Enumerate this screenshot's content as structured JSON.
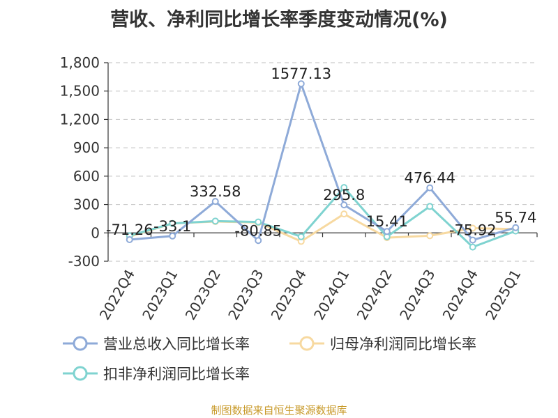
{
  "title": "营收、净利同比增长率季度变动情况(%)",
  "source": "制图数据来自恒生聚源数据库",
  "chart_data": {
    "type": "line",
    "categories": [
      "2022Q4",
      "2023Q1",
      "2023Q2",
      "2023Q3",
      "2023Q4",
      "2024Q1",
      "2024Q2",
      "2024Q3",
      "2024Q4",
      "2025Q1"
    ],
    "ylim": [
      -300,
      1800
    ],
    "yticks": [
      -300,
      0,
      300,
      600,
      900,
      1200,
      1500,
      1800
    ],
    "ytick_labels": [
      "-300",
      "0",
      "300",
      "600",
      "900",
      "1,200",
      "1,500",
      "1,800"
    ],
    "grid": true,
    "legend_position": "bottom",
    "series": [
      {
        "name": "营业总收入同比增长率",
        "color": "#8eaad8",
        "values": [
          -71.26,
          -33.1,
          332.58,
          -80.85,
          1577.13,
          295.8,
          15.41,
          476.44,
          -75.92,
          55.74
        ],
        "labels": [
          "-71.26",
          "-33.1",
          "332.58",
          "-80.85",
          "1577.13",
          "295.8",
          "15.41",
          "476.44",
          "-75.92",
          "55.74"
        ]
      },
      {
        "name": "归母净利润同比增长率",
        "color": "#f7d9a0",
        "values": [
          -40,
          100,
          120,
          110,
          -90,
          200,
          -50,
          -30,
          50,
          40
        ],
        "labels": []
      },
      {
        "name": "扣非净利润同比增长率",
        "color": "#7fd3d0",
        "values": [
          -30,
          100,
          125,
          115,
          -40,
          480,
          -40,
          280,
          -150,
          20
        ],
        "labels": []
      }
    ]
  }
}
